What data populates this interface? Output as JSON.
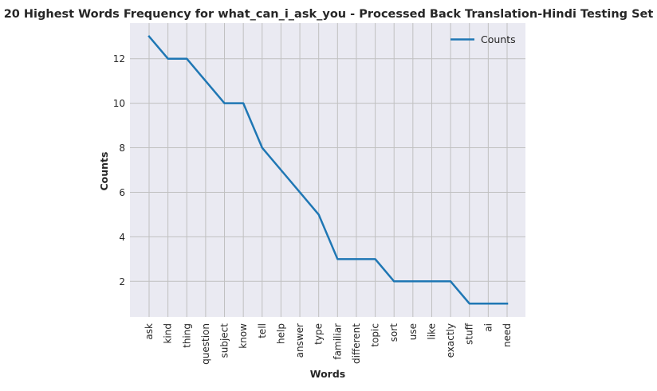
{
  "chart_data": {
    "type": "line",
    "title": "20 Highest Words Frequency for what_can_i_ask_you - Processed Back Translation-Hindi Testing Set",
    "xlabel": "Words",
    "ylabel": "Counts",
    "categories": [
      "ask",
      "kind",
      "thing",
      "question",
      "subject",
      "know",
      "tell",
      "help",
      "answer",
      "type",
      "familiar",
      "different",
      "topic",
      "sort",
      "use",
      "like",
      "exactly",
      "stuff",
      "ai",
      "need"
    ],
    "series": [
      {
        "name": "Counts",
        "values": [
          13,
          12,
          12,
          11,
          10,
          10,
          8,
          7,
          6,
          5,
          3,
          3,
          3,
          2,
          2,
          2,
          2,
          1,
          1,
          1
        ],
        "color": "#1f77b4"
      }
    ],
    "yticks": [
      2,
      4,
      6,
      8,
      10,
      12
    ],
    "ylim": [
      0.4,
      13.6
    ],
    "grid": true,
    "legend": "top-right",
    "colors": {
      "plot_background": "#eaeaf2",
      "grid": "#c0c0c0",
      "line": "#1f77b4",
      "text": "#262626"
    }
  }
}
